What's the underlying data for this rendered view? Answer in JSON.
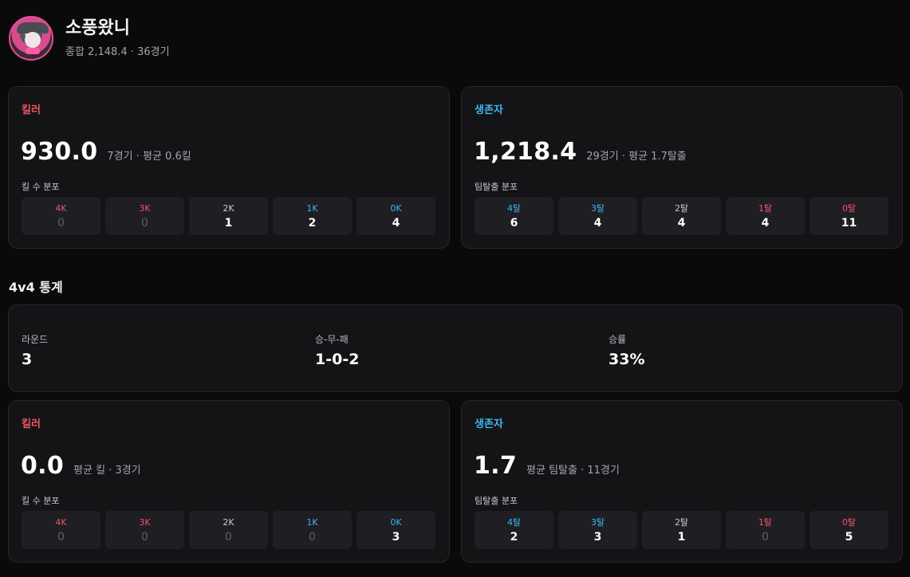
{
  "profile": {
    "name": "소풍왔니",
    "summary": "종합 2,148.4 · 36경기"
  },
  "overall": {
    "killer": {
      "role_label": "킬러",
      "score": "930.0",
      "meta": "7경기 · 평균 0.6킬",
      "dist_label": "킬 수 분포",
      "dist": [
        {
          "label": "4K",
          "value": "0"
        },
        {
          "label": "3K",
          "value": "0"
        },
        {
          "label": "2K",
          "value": "1"
        },
        {
          "label": "1K",
          "value": "2"
        },
        {
          "label": "0K",
          "value": "4"
        }
      ]
    },
    "survivor": {
      "role_label": "생존자",
      "score": "1,218.4",
      "meta": "29경기 · 평균 1.7탈출",
      "dist_label": "팀탈출 분포",
      "dist": [
        {
          "label": "4탈",
          "value": "6"
        },
        {
          "label": "3탈",
          "value": "4"
        },
        {
          "label": "2탈",
          "value": "4"
        },
        {
          "label": "1탈",
          "value": "4"
        },
        {
          "label": "0탈",
          "value": "11"
        }
      ]
    }
  },
  "fourv4": {
    "title": "4v4 통계",
    "stats": [
      {
        "label": "라운드",
        "value": "3"
      },
      {
        "label": "승-무-패",
        "value": "1-0-2"
      },
      {
        "label": "승률",
        "value": "33%"
      }
    ],
    "killer": {
      "role_label": "킬러",
      "score": "0.0",
      "meta": "평균 킬 · 3경기",
      "dist_label": "킬 수 분포",
      "dist": [
        {
          "label": "4K",
          "value": "0"
        },
        {
          "label": "3K",
          "value": "0"
        },
        {
          "label": "2K",
          "value": "0"
        },
        {
          "label": "1K",
          "value": "0"
        },
        {
          "label": "0K",
          "value": "3"
        }
      ]
    },
    "survivor": {
      "role_label": "생존자",
      "score": "1.7",
      "meta": "평균 팀탈출 · 11경기",
      "dist_label": "팀탈출 분포",
      "dist": [
        {
          "label": "4탈",
          "value": "2"
        },
        {
          "label": "3탈",
          "value": "3"
        },
        {
          "label": "2탈",
          "value": "1"
        },
        {
          "label": "1탈",
          "value": "0"
        },
        {
          "label": "0탈",
          "value": "5"
        }
      ]
    }
  },
  "colors": {
    "killer_accent": "#f05566",
    "survivor_accent": "#3fb6ee",
    "background": "#0a0a0b",
    "card": "#141417"
  }
}
